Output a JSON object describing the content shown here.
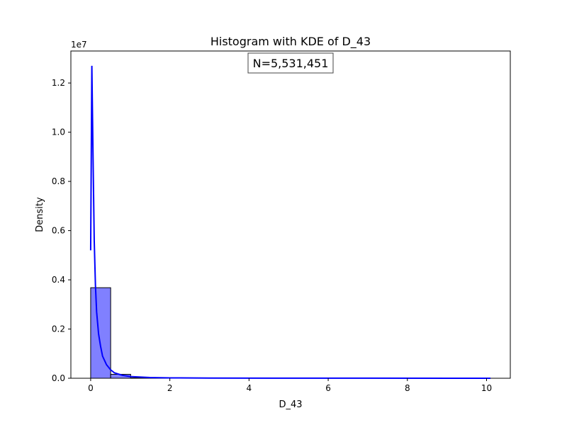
{
  "chart_data": {
    "type": "bar",
    "title": "Histogram with KDE of D_43",
    "xlabel": "D_43",
    "ylabel": "Density",
    "y_offset_label": "1e7",
    "annotation": "N=5,531,451",
    "xlim": [
      -0.5,
      10.6
    ],
    "ylim": [
      0,
      1.33
    ],
    "x_ticks": [
      0,
      2,
      4,
      6,
      8,
      10
    ],
    "x_tick_labels": [
      "0",
      "2",
      "4",
      "6",
      "8",
      "10"
    ],
    "y_ticks": [
      0,
      0.2,
      0.4,
      0.6,
      0.8,
      1.0,
      1.2
    ],
    "y_tick_labels": [
      "0.0",
      "0.2",
      "0.4",
      "0.6",
      "0.8",
      "1.0",
      "1.2"
    ],
    "bin_edges": [
      0,
      0.505,
      1.01,
      1.515,
      2.02,
      2.525,
      3.03,
      3.535,
      4.04,
      4.545,
      5.05,
      5.555,
      6.06,
      6.565,
      7.07,
      7.575,
      8.08,
      8.585,
      9.09,
      9.595,
      10.1
    ],
    "densities": [
      0.368,
      0.016,
      0.0015,
      0.0007,
      0.0004,
      0.0003,
      0.0002,
      0.0002,
      0.0001,
      0.0001,
      0.0001,
      0.0001,
      0.0001,
      0.0001,
      0.0001,
      0.0001,
      0.0001,
      0.0001,
      0.0001,
      0.0001
    ],
    "kde": {
      "x": [
        0,
        0.03,
        0.06,
        0.09,
        0.12,
        0.15,
        0.2,
        0.25,
        0.3,
        0.4,
        0.5,
        0.6,
        0.8,
        1.0,
        1.5,
        2.0,
        3.0,
        5.0,
        7.0,
        10.1
      ],
      "y": [
        0.52,
        1.27,
        0.9,
        0.56,
        0.38,
        0.27,
        0.18,
        0.13,
        0.09,
        0.055,
        0.035,
        0.022,
        0.012,
        0.007,
        0.003,
        0.0015,
        0.0008,
        0.0004,
        0.0002,
        0.0001
      ]
    },
    "colors": {
      "bar_fill": "#8080ff",
      "bar_edge": "#000000",
      "kde_line": "#0000ff"
    },
    "grid": false,
    "legend": false
  }
}
